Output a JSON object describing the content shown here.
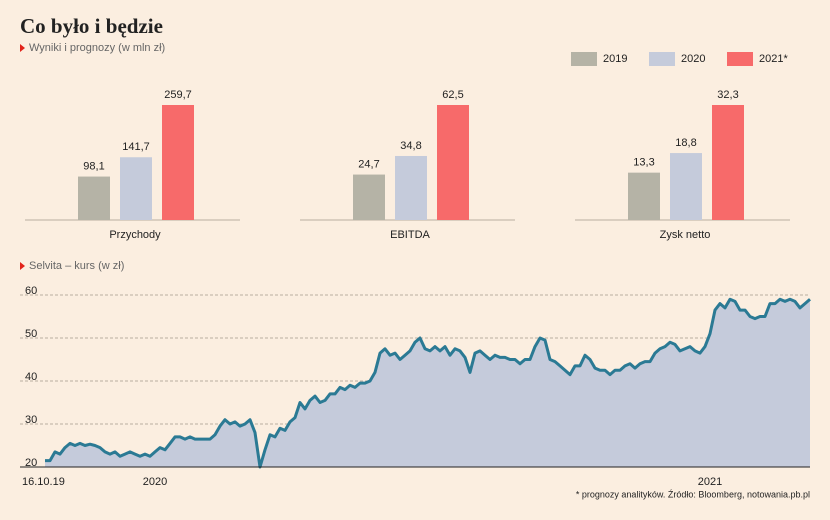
{
  "title": "Co było i będzie",
  "footnote": "* prognozy analityków. Źródło: Bloomberg, notowania.pb.pl",
  "chart_data": [
    {
      "type": "bar",
      "subtitle": "Wyniki i prognozy (w mln zł)",
      "categories": [
        "Przychody",
        "EBITDA",
        "Zysk netto"
      ],
      "series": [
        {
          "name": "2019",
          "color": "#b5b3a6",
          "values": [
            98.1,
            24.7,
            13.3
          ],
          "value_labels": [
            "98,1",
            "24,7",
            "13,3"
          ]
        },
        {
          "name": "2020",
          "color": "#c5cbdb",
          "values": [
            141.7,
            34.8,
            18.8
          ],
          "value_labels": [
            "141,7",
            "34,8",
            "18,8"
          ]
        },
        {
          "name": "2021*",
          "color": "#f76a6a",
          "values": [
            259.7,
            62.5,
            32.3
          ],
          "value_labels": [
            "259,7",
            "62,5",
            "32,3"
          ]
        }
      ]
    },
    {
      "type": "area",
      "subtitle": "Selvita – kurs (w zł)",
      "color": "#2b7a94",
      "fill": "#c5cbdb",
      "ylim": [
        20,
        60
      ],
      "yticks": [
        20,
        30,
        40,
        50,
        60
      ],
      "grid": true,
      "categories": [
        "16.10.19",
        null,
        null,
        null,
        null,
        null,
        null,
        null,
        null,
        null,
        null,
        null,
        null,
        null,
        null,
        null,
        null,
        null,
        null,
        null,
        null,
        null,
        "2020",
        null,
        null,
        null,
        null,
        null,
        null,
        null,
        null,
        null,
        null,
        null,
        null,
        null,
        null,
        null,
        null,
        null,
        null,
        null,
        null,
        null,
        null,
        null,
        null,
        null,
        null,
        null,
        null,
        null,
        null,
        null,
        null,
        null,
        null,
        null,
        null,
        null,
        null,
        null,
        null,
        null,
        null,
        null,
        null,
        null,
        null,
        null,
        null,
        null,
        null,
        null,
        null,
        null,
        null,
        null,
        null,
        null,
        null,
        null,
        null,
        null,
        null,
        null,
        null,
        null,
        null,
        null,
        null,
        null,
        null,
        null,
        null,
        null,
        null,
        null,
        null,
        null,
        null,
        null,
        null,
        null,
        null,
        null,
        null,
        null,
        null,
        null,
        null,
        null,
        null,
        null,
        null,
        null,
        null,
        null,
        null,
        null,
        null,
        null,
        null,
        null,
        null,
        null,
        null,
        null,
        null,
        null,
        null,
        null,
        null,
        "2021",
        null,
        null,
        null,
        null,
        null,
        null,
        null,
        null,
        null,
        null,
        null,
        null,
        null,
        null,
        null,
        null,
        null,
        null,
        null,
        null
      ],
      "values": [
        21.5,
        21.5,
        23.5,
        23,
        24.5,
        25.5,
        25,
        25.5,
        25,
        25.3,
        25,
        24.5,
        23.5,
        23,
        23.5,
        22.5,
        23,
        23.5,
        23,
        22.5,
        23,
        22.5,
        23.5,
        24.5,
        24,
        25.5,
        27,
        27,
        26.5,
        27,
        26.5,
        26.5,
        26.5,
        26.5,
        27.5,
        29.5,
        31,
        30,
        30.5,
        29.5,
        30,
        31,
        28,
        20,
        24,
        27.5,
        27,
        29,
        28.5,
        30.5,
        31.5,
        35,
        33.5,
        35.5,
        36.5,
        35,
        35.5,
        37,
        37,
        38.5,
        38,
        39,
        38.5,
        39.5,
        39.5,
        40,
        42,
        46.5,
        47.5,
        46,
        46.5,
        45,
        46,
        47,
        49,
        50,
        47.5,
        47,
        48,
        47,
        48,
        46,
        47.5,
        47,
        45.5,
        42,
        46.5,
        47,
        46,
        45,
        46,
        45.5,
        45.5,
        45,
        45,
        44,
        45,
        45,
        48,
        50,
        49.5,
        45,
        44.5,
        43.5,
        42.5,
        41.5,
        43.5,
        43.5,
        46,
        45,
        43,
        42.5,
        42.5,
        41.5,
        42.5,
        42.5,
        43.5,
        44,
        43,
        44,
        44.5,
        44.5,
        46.5,
        47.5,
        48,
        49,
        48.5,
        47,
        47.5,
        48,
        47,
        46.5,
        48,
        51,
        56.5,
        58,
        57,
        59,
        58.5,
        56.5,
        56.5,
        55,
        54.5,
        55,
        55,
        58,
        58,
        59,
        58.5,
        59,
        58.5,
        57,
        58,
        59
      ]
    }
  ]
}
